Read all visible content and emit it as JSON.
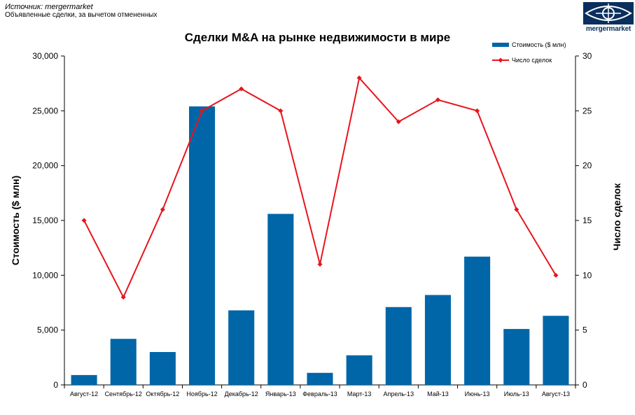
{
  "header": {
    "source": "Источник: mergermarket",
    "subtitle": "Объявленные сделки, за вычетом отмененных",
    "logo_text": "mergermarket"
  },
  "colors": {
    "bar": "#0066a8",
    "line": "#e8141c",
    "logo": "#0a2f5c"
  },
  "chart_data": {
    "type": "bar",
    "title": "Сделки M&A на рынке недвижимости в мире",
    "categories": [
      "Август-12",
      "Сентябрь-12",
      "Октябрь-12",
      "Ноябрь-12",
      "Декабрь-12",
      "Январь-13",
      "Февраль-13",
      "Март-13",
      "Апрель-13",
      "Май-13",
      "Июнь-13",
      "Июль-13",
      "Август-13"
    ],
    "series": [
      {
        "name": "Стоимость ($ млн)",
        "type": "bar",
        "axis": "left",
        "values": [
          900,
          4200,
          3000,
          25400,
          6800,
          15600,
          1100,
          2700,
          7100,
          8200,
          11700,
          5100,
          6300
        ]
      },
      {
        "name": "Число сделок",
        "type": "line",
        "axis": "right",
        "values": [
          15,
          8,
          16,
          25,
          27,
          25,
          11,
          28,
          24,
          26,
          25,
          16,
          10
        ]
      }
    ],
    "ylabel": "Стоимость ($ млн)",
    "y2label": "Число сделок",
    "ylim": [
      0,
      30000
    ],
    "y2lim": [
      0,
      30
    ],
    "yticks": [
      "0",
      "5,000",
      "10,000",
      "15,000",
      "20,000",
      "25,000",
      "30,000"
    ],
    "y2ticks": [
      "0",
      "5",
      "10",
      "15",
      "20",
      "25",
      "30"
    ],
    "legend_position": "top-right",
    "grid": false
  }
}
